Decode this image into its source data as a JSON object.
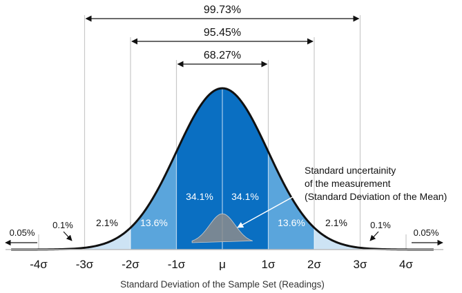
{
  "chart_data": {
    "type": "area",
    "title": "",
    "xlabel": "Standard Deviation of the Sample Set (Readings)",
    "ylabel": "",
    "xlim": [
      -4.5,
      4.5
    ],
    "ticks": [
      {
        "value": -4,
        "label": "-4σ"
      },
      {
        "value": -3,
        "label": "-3σ"
      },
      {
        "value": -2,
        "label": "-2σ"
      },
      {
        "value": -1,
        "label": "-1σ"
      },
      {
        "value": 0,
        "label": "μ"
      },
      {
        "value": 1,
        "label": "1σ"
      },
      {
        "value": 2,
        "label": "2σ"
      },
      {
        "value": 3,
        "label": "3σ"
      },
      {
        "value": 4,
        "label": "4σ"
      }
    ],
    "bands": [
      {
        "from": -1,
        "to": 0,
        "percent": 34.1,
        "label": "34.1%",
        "color": "#0a6fc2"
      },
      {
        "from": 0,
        "to": 1,
        "percent": 34.1,
        "label": "34.1%",
        "color": "#0a6fc2"
      },
      {
        "from": -2,
        "to": -1,
        "percent": 13.6,
        "label": "13.6%",
        "color": "#5aa5dc"
      },
      {
        "from": 1,
        "to": 2,
        "percent": 13.6,
        "label": "13.6%",
        "color": "#5aa5dc"
      },
      {
        "from": -3,
        "to": -2,
        "percent": 2.1,
        "label": "2.1%",
        "color": "#cde3f4"
      },
      {
        "from": 2,
        "to": 3,
        "percent": 2.1,
        "label": "2.1%",
        "color": "#cde3f4"
      },
      {
        "from": -4,
        "to": -3,
        "percent": 0.1,
        "label": "0.1%",
        "color": "#ffffff"
      },
      {
        "from": 3,
        "to": 4,
        "percent": 0.1,
        "label": "0.1%",
        "color": "#ffffff"
      },
      {
        "from": -4.5,
        "to": -4,
        "percent": 0.05,
        "label": "0.05%",
        "color": "#ffffff"
      },
      {
        "from": 4,
        "to": 4.5,
        "percent": 0.05,
        "label": "0.05%",
        "color": "#ffffff"
      }
    ],
    "ranges": [
      {
        "from": -1,
        "to": 1,
        "percent": 68.27,
        "label": "68.27%"
      },
      {
        "from": -2,
        "to": 2,
        "percent": 95.45,
        "label": "95.45%"
      },
      {
        "from": -3,
        "to": 3,
        "percent": 99.73,
        "label": "99.73%"
      }
    ],
    "annotation": {
      "lines": [
        "Standard uncertainity",
        "of the measurement",
        "(Standard Deviation of the Mean)"
      ]
    },
    "colors": {
      "curve": "#111111",
      "grid": "#c8c8c8",
      "band_inner": "#0a6fc2",
      "band_middle": "#5aa5dc",
      "band_outer": "#cde3f4",
      "mini_curve": "#8c8c8c"
    }
  }
}
